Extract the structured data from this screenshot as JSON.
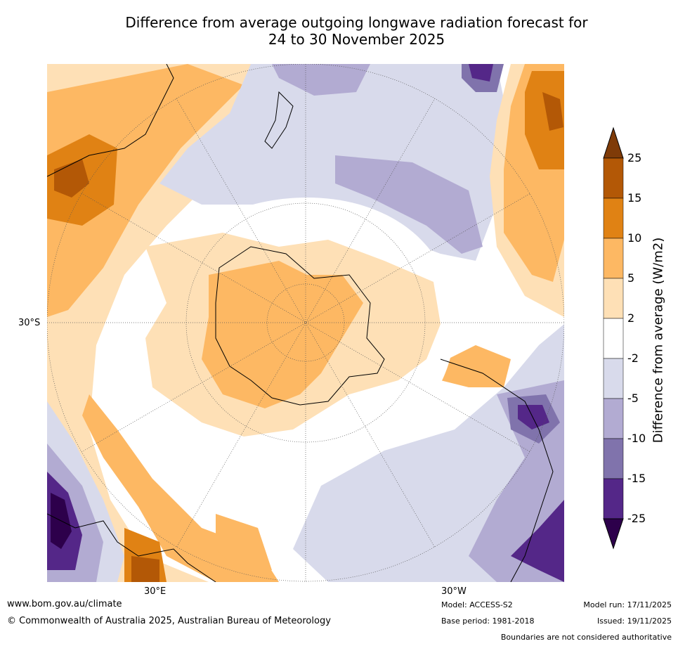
{
  "title": {
    "line1": "Difference from average outgoing longwave radiation forecast for",
    "line2": "24 to 30 November 2025"
  },
  "map": {
    "projection": "South polar stereographic",
    "labels": {
      "lat_30s": "30°S",
      "lon_30e": "30°E",
      "lon_30w": "30°W"
    }
  },
  "colorbar": {
    "title": "Difference from average (W/m2)",
    "ticks": [
      "25",
      "15",
      "10",
      "5",
      "2",
      "-2",
      "-5",
      "-10",
      "-15",
      "-25"
    ],
    "colors": {
      "above_25": "#7f3b08",
      "15_25": "#b35806",
      "10_15": "#e08214",
      "5_10": "#fdb863",
      "2_5": "#fee0b6",
      "neutral": "#ffffff",
      "m2_m5": "#d8daeb",
      "m5_m10": "#b2abd2",
      "m10_m15": "#8073ac",
      "m15_m25": "#542788",
      "below_m25": "#2d004b"
    }
  },
  "footer": {
    "website": "www.bom.gov.au/climate",
    "copyright": "© Commonwealth of Australia 2025, Australian Bureau of Meteorology",
    "model": "Model: ACCESS-S2",
    "base_period": "Base period: 1981-2018",
    "model_run": "Model run: 17/11/2025",
    "issued": "Issued: 19/11/2025",
    "disclaimer": "Boundaries are not considered authoritative"
  }
}
